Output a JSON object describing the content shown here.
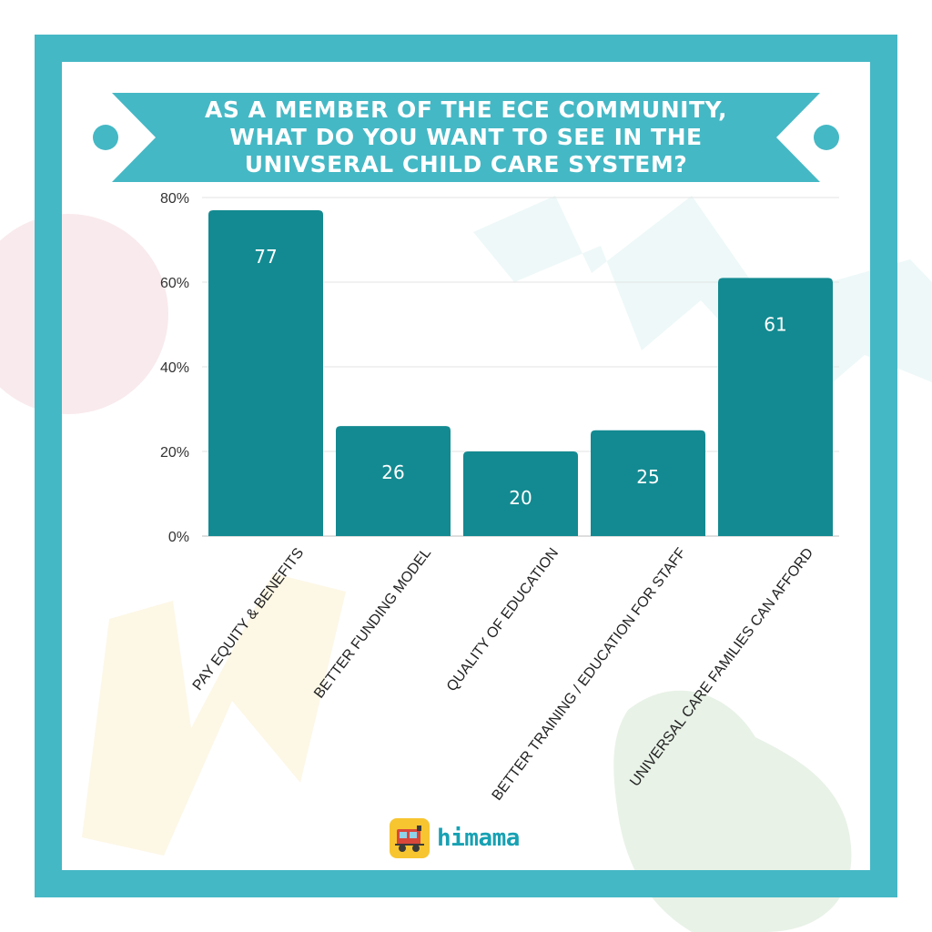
{
  "colors": {
    "frame": "#45b8c5",
    "banner": "#45b8c5",
    "bar": "#138a91",
    "bar_label": "#ffffff",
    "logo_text": "#17a1b3",
    "logo_icon": "#f7c530"
  },
  "banner": {
    "lines": [
      "AS A MEMBER OF THE ECE COMMUNITY,",
      "WHAT DO YOU WANT TO SEE IN THE",
      "UNIVSERAL CHILD CARE SYSTEM?"
    ]
  },
  "logo": {
    "text": "himama",
    "icon": "train-icon"
  },
  "chart_data": {
    "type": "bar",
    "title": "AS A MEMBER OF THE ECE COMMUNITY, WHAT DO YOU WANT TO SEE IN THE UNIVSERAL CHILD CARE SYSTEM?",
    "categories": [
      "PAY EQUITY & BENEFITS",
      "BETTER FUNDING MODEL",
      "QUALITY OF EDUCATION",
      "BETTER TRAINING / EDUCATION FOR STAFF",
      "UNIVERSAL CARE FAMILIES CAN AFFORD"
    ],
    "values": [
      77,
      26,
      20,
      25,
      61
    ],
    "data_labels": [
      "77",
      "26",
      "20",
      "25",
      "61"
    ],
    "ylim": [
      0,
      80
    ],
    "yticks": [
      0,
      20,
      40,
      60,
      80
    ],
    "ytick_labels": [
      "0%",
      "20%",
      "40%",
      "60%",
      "80%"
    ],
    "xlabel": "",
    "ylabel": "",
    "grid": true,
    "legend": "none"
  }
}
